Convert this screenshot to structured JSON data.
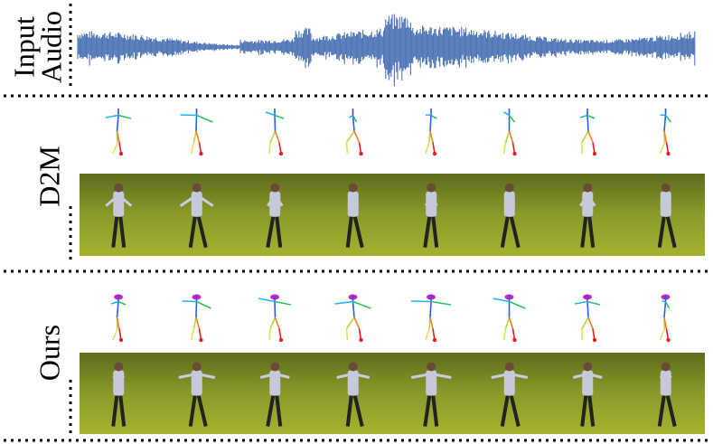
{
  "rows": [
    {
      "label_lines": [
        "Input",
        "Audio"
      ]
    },
    {
      "label_lines": [
        "D2M"
      ]
    },
    {
      "label_lines": [
        "Ours"
      ]
    }
  ]
}
